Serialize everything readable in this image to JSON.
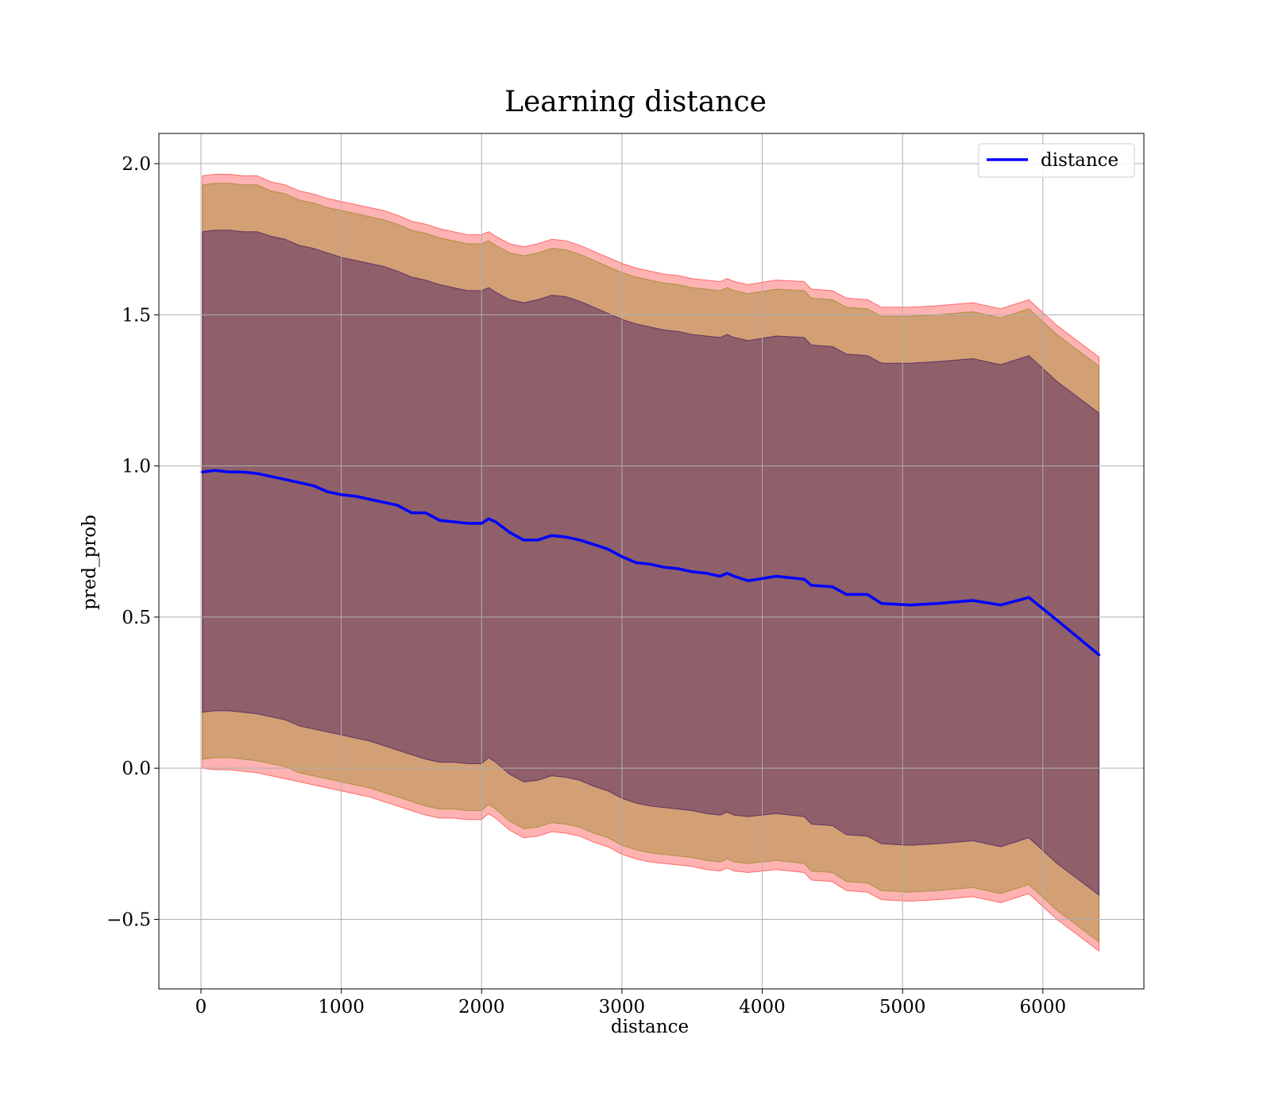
{
  "chart_data": {
    "type": "line",
    "title": "Learning distance",
    "xlabel": "distance",
    "ylabel": "pred_prob",
    "xlim": [
      -300,
      6720
    ],
    "ylim": [
      -0.73,
      2.1
    ],
    "xticks": [
      0,
      1000,
      2000,
      3000,
      4000,
      5000,
      6000
    ],
    "xtick_labels": [
      "0",
      "1000",
      "2000",
      "3000",
      "4000",
      "5000",
      "6000"
    ],
    "yticks": [
      -0.5,
      0.0,
      0.5,
      1.0,
      1.5,
      2.0
    ],
    "ytick_labels": [
      "−0.5",
      "0.0",
      "0.5",
      "1.0",
      "1.5",
      "2.0"
    ],
    "grid": true,
    "legend_position": "top-right",
    "series": [
      {
        "name": "distance",
        "color": "#0000ff",
        "x": [
          10,
          100,
          200,
          300,
          400,
          500,
          600,
          700,
          800,
          900,
          1000,
          1100,
          1200,
          1300,
          1400,
          1500,
          1600,
          1700,
          1800,
          1900,
          2000,
          2050,
          2100,
          2200,
          2300,
          2400,
          2500,
          2600,
          2700,
          2800,
          2900,
          3000,
          3100,
          3200,
          3300,
          3400,
          3500,
          3600,
          3700,
          3750,
          3800,
          3900,
          4100,
          4300,
          4350,
          4500,
          4600,
          4750,
          4850,
          5050,
          5250,
          5500,
          5700,
          5900,
          6100,
          6400
        ],
        "values": [
          0.98,
          0.985,
          0.98,
          0.98,
          0.975,
          0.965,
          0.955,
          0.945,
          0.935,
          0.915,
          0.905,
          0.9,
          0.89,
          0.88,
          0.87,
          0.845,
          0.845,
          0.82,
          0.815,
          0.81,
          0.81,
          0.825,
          0.815,
          0.78,
          0.755,
          0.755,
          0.77,
          0.765,
          0.755,
          0.74,
          0.725,
          0.7,
          0.68,
          0.675,
          0.665,
          0.66,
          0.65,
          0.645,
          0.635,
          0.645,
          0.635,
          0.62,
          0.635,
          0.625,
          0.605,
          0.6,
          0.575,
          0.575,
          0.545,
          0.54,
          0.545,
          0.555,
          0.54,
          0.565,
          0.49,
          0.375
        ]
      }
    ],
    "bands": [
      {
        "color": "#ff0000",
        "opacity": 0.3,
        "upper": [
          1.96,
          1.965,
          1.965,
          1.96,
          1.96,
          1.94,
          1.93,
          1.91,
          1.9,
          1.885,
          1.875,
          1.865,
          1.855,
          1.845,
          1.83,
          1.81,
          1.8,
          1.785,
          1.775,
          1.765,
          1.765,
          1.775,
          1.76,
          1.735,
          1.725,
          1.735,
          1.75,
          1.745,
          1.73,
          1.71,
          1.69,
          1.67,
          1.655,
          1.645,
          1.635,
          1.63,
          1.62,
          1.615,
          1.61,
          1.62,
          1.61,
          1.6,
          1.615,
          1.61,
          1.585,
          1.58,
          1.555,
          1.55,
          1.525,
          1.525,
          1.53,
          1.54,
          1.52,
          1.55,
          1.465,
          1.36
        ],
        "lower": [
          -0.0,
          -0.005,
          -0.005,
          -0.01,
          -0.015,
          -0.025,
          -0.035,
          -0.045,
          -0.055,
          -0.065,
          -0.075,
          -0.085,
          -0.095,
          -0.11,
          -0.125,
          -0.14,
          -0.155,
          -0.165,
          -0.165,
          -0.17,
          -0.17,
          -0.15,
          -0.165,
          -0.205,
          -0.23,
          -0.225,
          -0.21,
          -0.215,
          -0.225,
          -0.245,
          -0.26,
          -0.285,
          -0.3,
          -0.31,
          -0.315,
          -0.32,
          -0.325,
          -0.335,
          -0.34,
          -0.33,
          -0.34,
          -0.345,
          -0.335,
          -0.345,
          -0.37,
          -0.375,
          -0.405,
          -0.41,
          -0.435,
          -0.44,
          -0.435,
          -0.425,
          -0.445,
          -0.415,
          -0.5,
          -0.605
        ]
      },
      {
        "color": "#7f7f00",
        "opacity": 0.35,
        "upper": [
          1.93,
          1.935,
          1.935,
          1.93,
          1.93,
          1.91,
          1.9,
          1.88,
          1.87,
          1.855,
          1.845,
          1.835,
          1.825,
          1.815,
          1.8,
          1.78,
          1.77,
          1.755,
          1.745,
          1.735,
          1.735,
          1.745,
          1.73,
          1.705,
          1.695,
          1.705,
          1.72,
          1.715,
          1.7,
          1.68,
          1.66,
          1.64,
          1.625,
          1.615,
          1.605,
          1.6,
          1.59,
          1.585,
          1.58,
          1.59,
          1.58,
          1.57,
          1.585,
          1.58,
          1.555,
          1.55,
          1.525,
          1.52,
          1.495,
          1.495,
          1.5,
          1.51,
          1.49,
          1.52,
          1.435,
          1.33
        ],
        "lower": [
          0.03,
          0.035,
          0.035,
          0.03,
          0.025,
          0.015,
          0.005,
          -0.015,
          -0.025,
          -0.035,
          -0.045,
          -0.055,
          -0.065,
          -0.08,
          -0.095,
          -0.11,
          -0.125,
          -0.135,
          -0.135,
          -0.14,
          -0.14,
          -0.12,
          -0.135,
          -0.175,
          -0.2,
          -0.195,
          -0.18,
          -0.185,
          -0.195,
          -0.215,
          -0.23,
          -0.255,
          -0.27,
          -0.28,
          -0.285,
          -0.29,
          -0.295,
          -0.305,
          -0.31,
          -0.3,
          -0.31,
          -0.315,
          -0.305,
          -0.315,
          -0.34,
          -0.345,
          -0.375,
          -0.38,
          -0.405,
          -0.41,
          -0.405,
          -0.395,
          -0.415,
          -0.385,
          -0.47,
          -0.575
        ]
      },
      {
        "color": "#3f0f5f",
        "opacity": 0.45,
        "upper": [
          1.775,
          1.78,
          1.78,
          1.775,
          1.775,
          1.76,
          1.75,
          1.73,
          1.72,
          1.705,
          1.69,
          1.68,
          1.67,
          1.66,
          1.645,
          1.625,
          1.615,
          1.6,
          1.59,
          1.58,
          1.58,
          1.59,
          1.575,
          1.55,
          1.54,
          1.55,
          1.565,
          1.56,
          1.545,
          1.525,
          1.505,
          1.485,
          1.47,
          1.46,
          1.45,
          1.445,
          1.435,
          1.43,
          1.425,
          1.435,
          1.425,
          1.415,
          1.43,
          1.425,
          1.4,
          1.395,
          1.37,
          1.365,
          1.34,
          1.34,
          1.345,
          1.355,
          1.335,
          1.365,
          1.28,
          1.175
        ],
        "lower": [
          0.185,
          0.19,
          0.19,
          0.185,
          0.18,
          0.17,
          0.16,
          0.14,
          0.13,
          0.12,
          0.11,
          0.1,
          0.09,
          0.075,
          0.06,
          0.045,
          0.03,
          0.02,
          0.02,
          0.015,
          0.015,
          0.035,
          0.02,
          -0.02,
          -0.045,
          -0.04,
          -0.025,
          -0.03,
          -0.04,
          -0.06,
          -0.075,
          -0.1,
          -0.115,
          -0.125,
          -0.13,
          -0.135,
          -0.14,
          -0.15,
          -0.155,
          -0.145,
          -0.155,
          -0.16,
          -0.15,
          -0.16,
          -0.185,
          -0.19,
          -0.22,
          -0.225,
          -0.25,
          -0.255,
          -0.25,
          -0.24,
          -0.26,
          -0.23,
          -0.315,
          -0.42
        ]
      }
    ]
  }
}
